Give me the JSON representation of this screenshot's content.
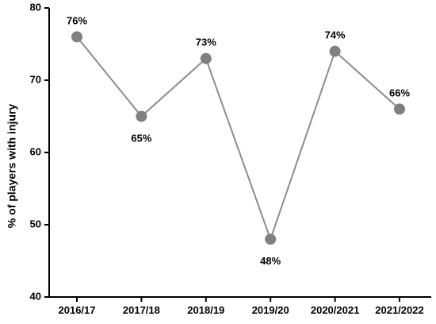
{
  "chart_data": {
    "type": "line",
    "categories": [
      "2016/17",
      "2017/18",
      "2018/19",
      "2019/20",
      "2020/2021",
      "2021/2022"
    ],
    "values": [
      76,
      65,
      73,
      48,
      74,
      66
    ],
    "data_labels": [
      "76%",
      "65%",
      "73%",
      "48%",
      "74%",
      "66%"
    ],
    "title": "",
    "xlabel": "",
    "ylabel": "% of players with injury",
    "ylim": [
      40,
      80
    ],
    "yticks": [
      40,
      50,
      60,
      70,
      80
    ],
    "grid": false,
    "legend": "none",
    "colors": {
      "line": "#8c8c8c",
      "marker": "#808080",
      "axis": "#000000"
    }
  }
}
